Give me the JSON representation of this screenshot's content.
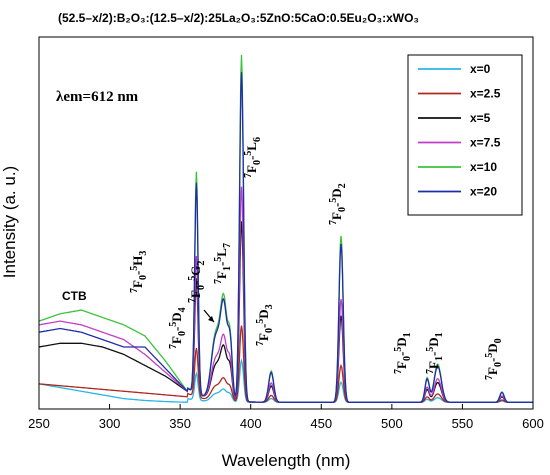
{
  "chart_data": {
    "type": "line",
    "title": "(52.5–x/2):B₂O₃:(12.5–x/2):25La₂O₃:5ZnO:5CaO:0.5Eu₂O₃:xWO₃",
    "xlabel": "Wavelength (nm)",
    "ylabel": "Intensity (a. u.)",
    "xlim": [
      250,
      600
    ],
    "xticks": [
      "250",
      "300",
      "350",
      "400",
      "450",
      "500",
      "550",
      "600"
    ],
    "ylim": [
      0,
      100
    ],
    "excitation_note": "λem=612 nm",
    "ctb_label": "CTB",
    "grid": false,
    "legend_position": "top-right",
    "peak_labels": [
      {
        "parts": [
          "7",
          "F",
          "0",
          "-",
          "5",
          "H",
          "3"
        ]
      },
      {
        "parts": [
          "7",
          "F",
          "0",
          "-",
          "5",
          "D",
          "4"
        ]
      },
      {
        "parts": [
          "7",
          "F",
          "0",
          "-",
          "5",
          "G",
          "2"
        ]
      },
      {
        "parts": [
          "7",
          "F",
          "1",
          "-",
          "5",
          "L",
          "7"
        ]
      },
      {
        "parts": [
          "7",
          "F",
          "0",
          "-",
          "5",
          "L",
          "6"
        ]
      },
      {
        "parts": [
          "7",
          "F",
          "0",
          "-",
          "5",
          "D",
          "3"
        ]
      },
      {
        "parts": [
          "7",
          "F",
          "0",
          "-",
          "5",
          "D",
          "2"
        ]
      },
      {
        "parts": [
          "7",
          "F",
          "0",
          "-",
          "5",
          "D",
          "1"
        ]
      },
      {
        "parts": [
          "7",
          "F",
          "1",
          "-",
          "5",
          "D",
          "1"
        ]
      },
      {
        "parts": [
          "7",
          "F",
          "0",
          "-",
          "5",
          "D",
          "0"
        ]
      }
    ],
    "series": [
      {
        "name": "x=0",
        "color": "#29b6e8",
        "scale": 0.12,
        "ctb": [
          6,
          5,
          4,
          3,
          2,
          1.5,
          1.2,
          1
        ]
      },
      {
        "name": "x=2.5",
        "color": "#b02a1c",
        "scale": 0.22,
        "ctb": [
          6,
          5.5,
          5,
          4.5,
          4,
          3.5,
          3,
          2.5
        ]
      },
      {
        "name": "x=5",
        "color": "#111111",
        "scale": 0.52,
        "ctb": [
          16,
          17,
          17,
          16,
          14,
          11,
          8,
          4
        ]
      },
      {
        "name": "x=7.5",
        "color": "#c23ec8",
        "scale": 0.62,
        "ctb": [
          22,
          23,
          22,
          20,
          18,
          14,
          9,
          4
        ]
      },
      {
        "name": "x=10",
        "color": "#3dc23d",
        "scale": 1.0,
        "ctb": [
          23,
          25,
          26,
          24,
          22,
          19,
          12,
          4
        ]
      },
      {
        "name": "x=20",
        "color": "#1e2da8",
        "scale": 0.95,
        "ctb": [
          20,
          21,
          20,
          18,
          16,
          16,
          10,
          4
        ]
      }
    ]
  }
}
